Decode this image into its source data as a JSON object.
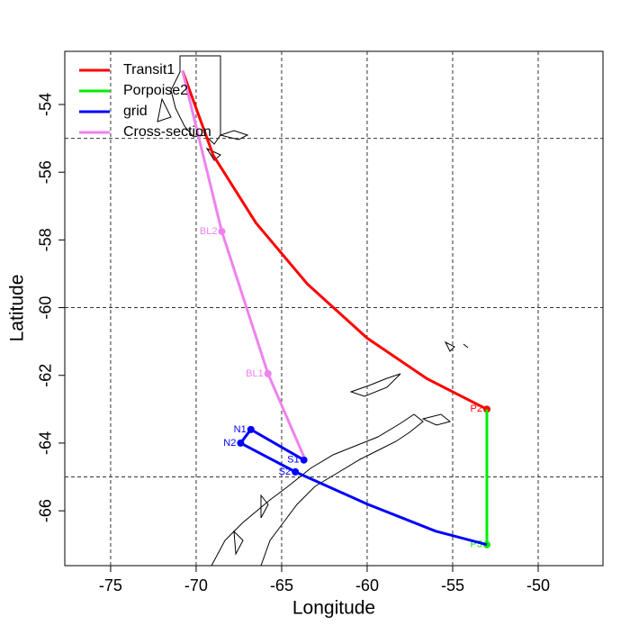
{
  "chart_data": {
    "type": "line",
    "x_label": "Longitude",
    "y_label": "Latitude",
    "xlim": [
      -77.68,
      -46.21
    ],
    "ylim": [
      -67.62,
      -52.43
    ],
    "xticks": [
      -75,
      -70,
      -65,
      -60,
      -55,
      -50
    ],
    "yticks": [
      -66,
      -64,
      -62,
      -60,
      -58,
      -56,
      -54
    ],
    "grid_x": [
      -75,
      -70,
      -65,
      -60,
      -55,
      -50
    ],
    "grid_y": [
      -65,
      -60,
      -55
    ],
    "legend": "top-left",
    "series": [
      {
        "name": "Transit1",
        "color": "#ff0000",
        "x": [
          -70.8,
          -69.0,
          -66.5,
          -63.5,
          -60,
          -56.5,
          -53
        ],
        "values": [
          -53.0,
          -55.5,
          -57.5,
          -59.3,
          -60.9,
          -62.1,
          -63.0
        ],
        "point_labels": [
          null,
          null,
          null,
          null,
          null,
          null,
          "P2"
        ]
      },
      {
        "name": "Porpoise2",
        "color": "#00ee00",
        "x": [
          -53,
          -53
        ],
        "values": [
          -63.0,
          -67.0
        ],
        "point_labels": [
          null,
          "P3"
        ]
      },
      {
        "name": "grid",
        "color": "#0000ff",
        "x": [
          -63.7,
          -66.8,
          -67.4,
          -64.2,
          -60,
          -56,
          -53
        ],
        "values": [
          -64.5,
          -63.6,
          -64.0,
          -64.85,
          -65.8,
          -66.6,
          -67.0
        ],
        "point_labels": [
          "S1",
          "N1",
          "N2",
          "S2",
          null,
          null,
          null
        ]
      },
      {
        "name": "Cross-section",
        "color": "#ee82ee",
        "x": [
          -70.8,
          -68.5,
          -65.8,
          -63.7
        ],
        "values": [
          -53.0,
          -57.75,
          -61.95,
          -64.4
        ],
        "point_labels": [
          null,
          "BL2",
          "BL1",
          null
        ]
      }
    ]
  }
}
